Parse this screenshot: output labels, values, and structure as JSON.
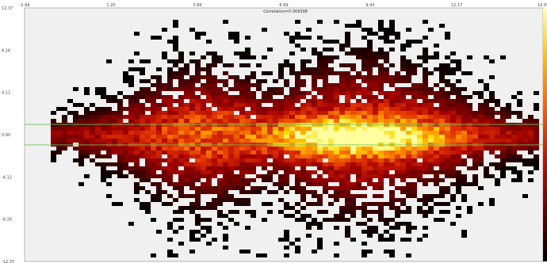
{
  "chart_data": {
    "type": "heatmap",
    "title": "Correlation=0.069398",
    "xlabel": "",
    "ylabel": "",
    "xlim": [
      -2.94,
      14.09
    ],
    "ylim": [
      -12.37,
      12.37
    ],
    "x_ticks": [
      "-2.94",
      "1.20",
      "3.66",
      "6.69",
      "9.43",
      "12.17",
      "14.09"
    ],
    "y_ticks": [
      "12.37",
      "8.26",
      "4.12",
      "0.00",
      "-4.12",
      "-8.26",
      "-12.37"
    ],
    "grid": false,
    "legend": "none",
    "colorbar": "right",
    "reference_lines_y": [
      1.0,
      -1.0
    ],
    "colors": {
      "background": "#f0f0f0",
      "reference_line": "#6fbf5a",
      "axis": "#888888",
      "colormap": [
        "#000000",
        "#5a0000",
        "#a00000",
        "#e03000",
        "#ff8c00",
        "#ffd700",
        "#ffffa0"
      ]
    },
    "density_model": {
      "description_units": "data units",
      "ridge_peak_x": 7.9,
      "ridge_y_center": 0.1,
      "x_density_range": [
        -2.2,
        13.8
      ],
      "max_spread_y": 9.5
    }
  }
}
